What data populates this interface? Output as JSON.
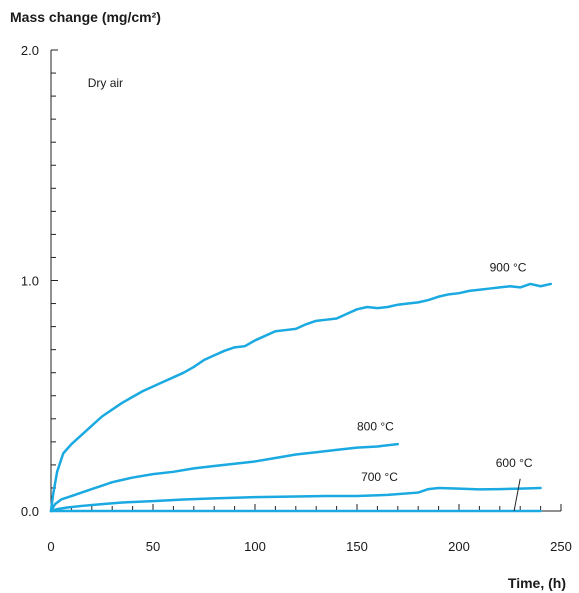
{
  "chart_data": {
    "type": "line",
    "title": "",
    "ylabel": "Mass change (mg/cm²)",
    "xlabel": "Time, (h)",
    "xlim": [
      0,
      250
    ],
    "ylim": [
      0,
      2.0
    ],
    "x_ticks": [
      0,
      50,
      100,
      150,
      200,
      250
    ],
    "x_tick_labels": [
      "0",
      "50",
      "100",
      "150",
      "200",
      "250"
    ],
    "y_ticks": [
      0.0,
      1.0,
      2.0
    ],
    "y_tick_labels": [
      "0.0",
      "1.0",
      "2.0"
    ],
    "x_minor_step": 10,
    "y_minor_step": 0.1,
    "grid": false,
    "line_color": "#1aa9e0",
    "annotations": [
      {
        "text": "Dry air",
        "x": 18,
        "y": 1.84
      },
      {
        "text": "900 °C",
        "x": 215,
        "y": 1.04
      },
      {
        "text": "800 °C",
        "x": 150,
        "y": 0.35
      },
      {
        "text": "700 °C",
        "x": 152,
        "y": 0.13
      },
      {
        "text": "600 °C",
        "x": 218,
        "y": 0.19
      }
    ],
    "leader_line": {
      "label": "600 °C",
      "from": [
        227,
        0.0
      ],
      "to": [
        230,
        0.14
      ]
    },
    "series": [
      {
        "label": "900 °C",
        "x": [
          0,
          1,
          3,
          6,
          10,
          15,
          20,
          25,
          30,
          35,
          40,
          45,
          50,
          55,
          60,
          65,
          70,
          75,
          80,
          85,
          90,
          95,
          100,
          105,
          110,
          115,
          120,
          125,
          130,
          135,
          140,
          145,
          150,
          155,
          160,
          165,
          170,
          175,
          180,
          185,
          190,
          195,
          200,
          205,
          210,
          215,
          220,
          225,
          230,
          235,
          240,
          245
        ],
        "y": [
          0.0,
          0.07,
          0.17,
          0.25,
          0.29,
          0.33,
          0.37,
          0.41,
          0.44,
          0.47,
          0.495,
          0.52,
          0.54,
          0.56,
          0.58,
          0.6,
          0.625,
          0.655,
          0.675,
          0.695,
          0.71,
          0.715,
          0.74,
          0.76,
          0.78,
          0.785,
          0.79,
          0.81,
          0.825,
          0.83,
          0.835,
          0.855,
          0.875,
          0.885,
          0.88,
          0.885,
          0.895,
          0.9,
          0.905,
          0.915,
          0.93,
          0.94,
          0.945,
          0.955,
          0.96,
          0.965,
          0.97,
          0.975,
          0.97,
          0.985,
          0.975,
          0.985
        ]
      },
      {
        "label": "800 °C",
        "x": [
          0,
          2,
          5,
          10,
          15,
          20,
          25,
          30,
          35,
          40,
          50,
          60,
          70,
          80,
          90,
          100,
          110,
          120,
          130,
          140,
          150,
          160,
          170
        ],
        "y": [
          0.0,
          0.03,
          0.05,
          0.065,
          0.08,
          0.095,
          0.11,
          0.125,
          0.135,
          0.145,
          0.16,
          0.17,
          0.185,
          0.195,
          0.205,
          0.215,
          0.23,
          0.245,
          0.255,
          0.265,
          0.275,
          0.28,
          0.29
        ]
      },
      {
        "label": "700 °C",
        "x": [
          0,
          3,
          8,
          15,
          25,
          35,
          50,
          65,
          80,
          100,
          120,
          135,
          150,
          165,
          180,
          185,
          190,
          200,
          210,
          220,
          230,
          240
        ],
        "y": [
          0.0,
          0.008,
          0.015,
          0.022,
          0.03,
          0.037,
          0.043,
          0.05,
          0.055,
          0.06,
          0.063,
          0.065,
          0.065,
          0.07,
          0.08,
          0.095,
          0.1,
          0.097,
          0.094,
          0.095,
          0.097,
          0.1
        ]
      },
      {
        "label": "600 °C",
        "x": [
          0,
          50,
          100,
          150,
          200,
          240
        ],
        "y": [
          0.0,
          0.0,
          0.0,
          0.0,
          0.0,
          0.0
        ]
      }
    ]
  }
}
